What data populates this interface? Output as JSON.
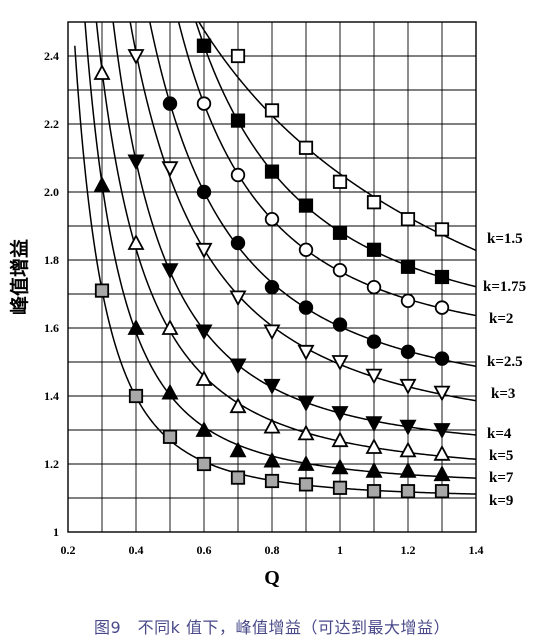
{
  "caption": "图9　不同k 值下，峰值增益（可达到最大增益）",
  "chart_data": {
    "type": "line",
    "title": "",
    "xlabel": "Q",
    "ylabel": "峰值增益",
    "xlim": [
      0.2,
      1.4
    ],
    "ylim": [
      1.0,
      2.5
    ],
    "x_ticks": [
      "0.2",
      "0.4",
      "0.6",
      "0.8",
      "1",
      "1.2",
      "1.4"
    ],
    "y_ticks": [
      "1",
      "1.2",
      "1.4",
      "1.6",
      "1.8",
      "2.0",
      "2.2",
      "2.4"
    ],
    "grid": true,
    "series": [
      {
        "name": "k=1.5",
        "marker": "square-open",
        "x": [
          0.6,
          0.7,
          0.8,
          0.9,
          1.0,
          1.1,
          1.2,
          1.3
        ],
        "values": [
          2.43,
          2.4,
          2.24,
          2.13,
          2.03,
          1.97,
          1.92,
          1.89
        ]
      },
      {
        "name": "k=1.75",
        "marker": "square-filled",
        "x": [
          0.6,
          0.7,
          0.8,
          0.9,
          1.0,
          1.1,
          1.2,
          1.3
        ],
        "values": [
          2.43,
          2.21,
          2.06,
          1.96,
          1.88,
          1.83,
          1.78,
          1.75
        ]
      },
      {
        "name": "k=2",
        "marker": "circle-open",
        "x": [
          0.6,
          0.7,
          0.8,
          0.9,
          1.0,
          1.1,
          1.2,
          1.3
        ],
        "values": [
          2.26,
          2.05,
          1.92,
          1.83,
          1.77,
          1.72,
          1.68,
          1.66
        ]
      },
      {
        "name": "k=2.5",
        "marker": "circle-filled",
        "x": [
          0.5,
          0.6,
          0.7,
          0.8,
          0.9,
          1.0,
          1.1,
          1.2,
          1.3
        ],
        "values": [
          2.26,
          2.0,
          1.85,
          1.72,
          1.66,
          1.61,
          1.56,
          1.53,
          1.51
        ]
      },
      {
        "name": "k=3",
        "marker": "triangle-down-open",
        "x": [
          0.4,
          0.5,
          0.6,
          0.7,
          0.8,
          0.9,
          1.0,
          1.1,
          1.2,
          1.3
        ],
        "values": [
          2.4,
          2.07,
          1.83,
          1.69,
          1.59,
          1.53,
          1.5,
          1.46,
          1.43,
          1.41
        ]
      },
      {
        "name": "k=4",
        "marker": "triangle-down-filled",
        "x": [
          0.4,
          0.5,
          0.6,
          0.7,
          0.8,
          0.9,
          1.0,
          1.1,
          1.2,
          1.3
        ],
        "values": [
          2.09,
          1.77,
          1.59,
          1.49,
          1.43,
          1.38,
          1.35,
          1.32,
          1.31,
          1.3
        ]
      },
      {
        "name": "k=5",
        "marker": "triangle-up-open",
        "x": [
          0.3,
          0.4,
          0.5,
          0.6,
          0.7,
          0.8,
          0.9,
          1.0,
          1.1,
          1.2,
          1.3
        ],
        "values": [
          2.35,
          1.85,
          1.6,
          1.45,
          1.37,
          1.31,
          1.29,
          1.27,
          1.25,
          1.24,
          1.23
        ]
      },
      {
        "name": "k=7",
        "marker": "triangle-up-filled",
        "x": [
          0.3,
          0.4,
          0.5,
          0.6,
          0.7,
          0.8,
          0.9,
          1.0,
          1.1,
          1.2,
          1.3
        ],
        "values": [
          2.02,
          1.6,
          1.41,
          1.3,
          1.24,
          1.21,
          1.2,
          1.19,
          1.18,
          1.18,
          1.17
        ]
      },
      {
        "name": "k=9",
        "marker": "square-gray",
        "x": [
          0.3,
          0.4,
          0.5,
          0.6,
          0.7,
          0.8,
          0.9,
          1.0,
          1.1,
          1.2,
          1.3
        ],
        "values": [
          1.71,
          1.4,
          1.28,
          1.2,
          1.16,
          1.15,
          1.14,
          1.13,
          1.12,
          1.12,
          1.12
        ]
      }
    ]
  }
}
